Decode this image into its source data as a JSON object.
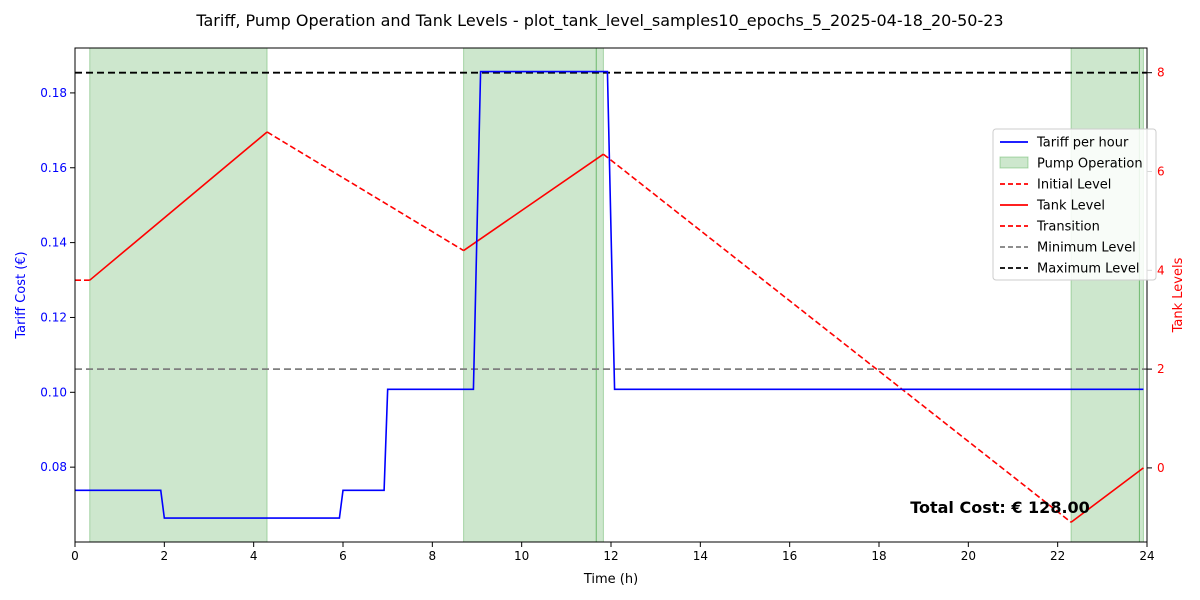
{
  "chart_data": {
    "type": "line",
    "title": "Tariff, Pump Operation and Tank Levels - plot_tank_level_samples10_epochs_5_2025-04-18_20-50-23",
    "xlabel": "Time (h)",
    "ylabel_left": "Tariff Cost (€)",
    "ylabel_right": "Tank Levels",
    "xlim": [
      0,
      24
    ],
    "ylim_left": [
      0.06,
      0.192
    ],
    "ylim_right": [
      -1.5,
      8.5
    ],
    "x_ticks": [
      0,
      2,
      4,
      6,
      8,
      10,
      12,
      14,
      16,
      18,
      20,
      22,
      24
    ],
    "y_ticks_left": [
      0.08,
      0.1,
      0.12,
      0.14,
      0.16,
      0.18
    ],
    "y_ticks_right": [
      0,
      2,
      4,
      6,
      8
    ],
    "colors": {
      "tariff": "#0000ff",
      "pump": "#2e9a2e",
      "tank": "#ff0000",
      "min_level": "#7f7f7f",
      "max_level": "#000000",
      "right_axis": "#ff0000",
      "left_axis": "#0000ff"
    },
    "pump_operation": [
      [
        0.33,
        4.3
      ],
      [
        8.7,
        11.67
      ],
      [
        11.67,
        11.83
      ],
      [
        22.3,
        23.83
      ],
      [
        23.83,
        23.92
      ]
    ],
    "tariff": {
      "name": "Tariff per hour",
      "x": [
        0,
        1.92,
        2.0,
        5.92,
        6.0,
        6.92,
        7.0,
        8.92,
        9.08,
        11.92,
        12.08,
        23.92
      ],
      "y": [
        0.0738,
        0.0738,
        0.0664,
        0.0664,
        0.0738,
        0.0738,
        0.1008,
        0.1008,
        0.1857,
        0.1857,
        0.1008,
        0.1008
      ]
    },
    "initial_level": {
      "name": "Initial Level",
      "x": [
        0,
        0.33
      ],
      "y": [
        3.8,
        3.8
      ]
    },
    "tank_level_segments": [
      {
        "x": [
          0.33,
          4.3
        ],
        "y": [
          3.8,
          6.8
        ]
      },
      {
        "x": [
          8.7,
          11.83
        ],
        "y": [
          4.4,
          6.35
        ]
      },
      {
        "x": [
          22.3,
          23.92
        ],
        "y": [
          -1.1,
          0
        ]
      }
    ],
    "transition_segments": [
      {
        "x": [
          4.3,
          8.7
        ],
        "y": [
          6.8,
          4.4
        ]
      },
      {
        "x": [
          11.83,
          22.3
        ],
        "y": [
          6.35,
          -1.1
        ]
      }
    ],
    "min_level": {
      "name": "Minimum Level",
      "value": 2.0
    },
    "max_level": {
      "name": "Maximum Level",
      "value": 8.0
    },
    "legend": {
      "placement": "right",
      "entries": [
        "Tariff per hour",
        "Pump Operation",
        "Initial Level",
        "Tank Level",
        "Transition",
        "Minimum Level",
        "Maximum Level"
      ]
    },
    "annotation": "Total Cost: € 128.00"
  }
}
